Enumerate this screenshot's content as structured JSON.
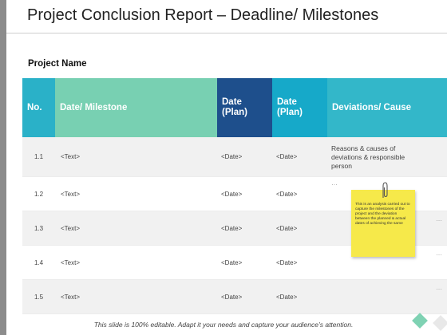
{
  "title": "Project Conclusion Report – Deadline/ Milestones",
  "project_name": "Project Name",
  "table": {
    "headers": {
      "no": "No.",
      "milestone": "Date/ Milestone",
      "plan1": "Date (Plan)",
      "plan2": "Date (Plan)",
      "deviations": "Deviations/ Cause"
    },
    "rows": [
      {
        "no": "1.1",
        "milestone": "<Text>",
        "plan1": "<Date>",
        "plan2": "<Date>",
        "deviation": "Reasons & causes of deviations & responsible person"
      },
      {
        "no": "1.2",
        "milestone": "<Text>",
        "plan1": "<Date>",
        "plan2": "<Date>",
        "deviation": "…"
      },
      {
        "no": "1.3",
        "milestone": "<Text>",
        "plan1": "<Date>",
        "plan2": "<Date>",
        "deviation": "…"
      },
      {
        "no": "1.4",
        "milestone": "<Text>",
        "plan1": "<Date>",
        "plan2": "<Date>",
        "deviation": "…"
      },
      {
        "no": "1.5",
        "milestone": "<Text>",
        "plan1": "<Date>",
        "plan2": "<Date>",
        "deviation": "…"
      }
    ]
  },
  "sticky_note": {
    "text": "This is an analysis carried out to capture the milestones of the project and the deviation between the planned & actual dates of achieving the same"
  },
  "footer": "This slide is 100% editable. Adapt it your needs and capture your audience’s attention.",
  "colors": {
    "header_no": "#2ab1c8",
    "header_milestone": "#78d0b2",
    "header_plan1": "#1e4f8c",
    "header_plan2": "#16a9c9",
    "header_deviations": "#33b7c9",
    "sticky_note": "#f6e94a"
  }
}
